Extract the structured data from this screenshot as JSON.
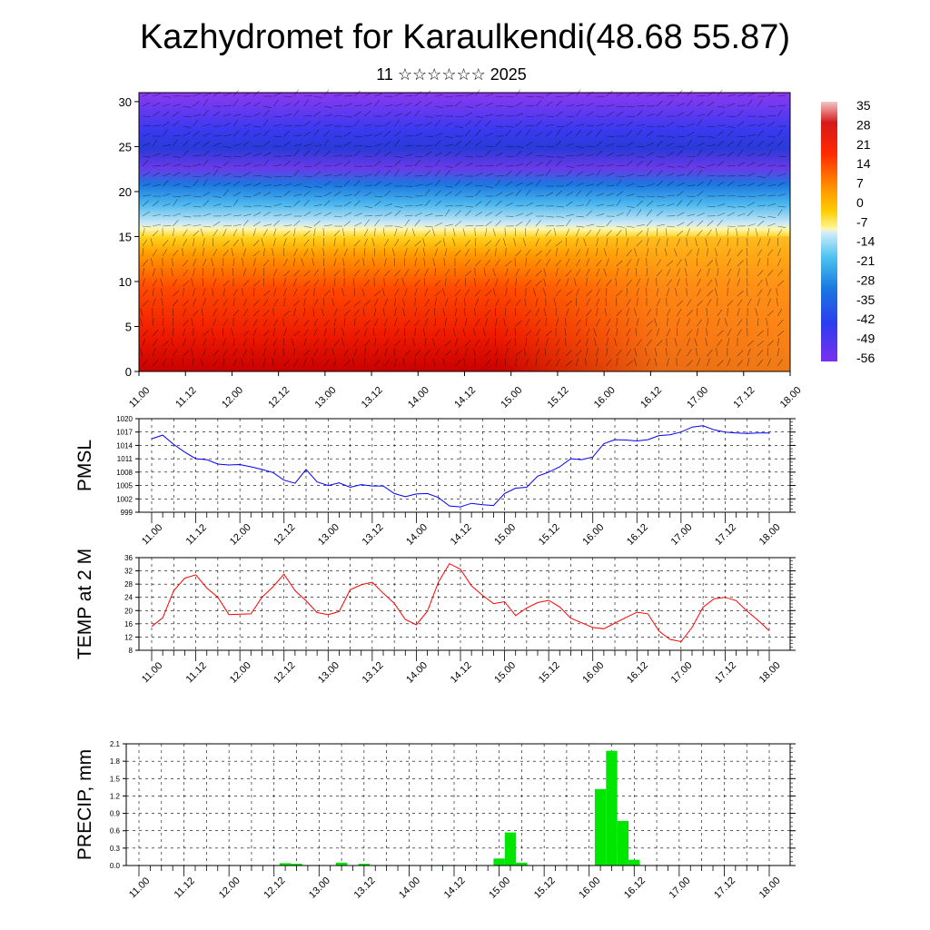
{
  "title": "Kazhydromet for Karaulkendi(48.68 55.87)",
  "subtitle": "11 ☆☆☆☆☆☆ 2025",
  "time_labels": [
    "11.00",
    "11.12",
    "12.00",
    "12.12",
    "13.00",
    "13.12",
    "14.00",
    "14.12",
    "15.00",
    "15.12",
    "16.00",
    "16.12",
    "17.00",
    "17.12",
    "18.00"
  ],
  "colors": {
    "pmsl_line": "#0000ff",
    "temp_line": "#ff0000",
    "precip_bar": "#00e600",
    "grid": "#000000"
  },
  "chart_data": [
    {
      "type": "heatmap",
      "name": "cross-section",
      "yticks": [
        0,
        5,
        10,
        15,
        20,
        25,
        30
      ],
      "ylim": [
        0,
        31
      ],
      "colorbar_labels": [
        "35",
        "28",
        "21",
        "14",
        "7",
        "0",
        "-7",
        "-14",
        "-21",
        "-28",
        "-35",
        "-42",
        "-49",
        "-56"
      ],
      "colorbar_range": [
        -60,
        38
      ]
    },
    {
      "type": "line",
      "ylabel": "PMSL",
      "ylim": [
        999,
        1020
      ],
      "yticks": [
        999,
        1002,
        1005,
        1008,
        1011,
        1014,
        1017,
        1020
      ],
      "values": [
        1015.5,
        1016.3,
        1014.2,
        1012.5,
        1011.0,
        1010.8,
        1009.8,
        1009.6,
        1009.7,
        1009.2,
        1008.6,
        1007.9,
        1006.2,
        1005.5,
        1008.6,
        1005.8,
        1005.0,
        1005.6,
        1004.6,
        1005.2,
        1004.9,
        1004.9,
        1003.2,
        1002.5,
        1003.1,
        1003.2,
        1002.3,
        1000.4,
        1000.2,
        1001.0,
        1000.7,
        1000.5,
        1003.2,
        1004.4,
        1004.6,
        1007.1,
        1008.0,
        1009.2,
        1011.0,
        1010.8,
        1011.4,
        1014.4,
        1015.3,
        1015.2,
        1015.0,
        1015.3,
        1016.2,
        1016.4,
        1017.0,
        1018.1,
        1018.4,
        1017.5,
        1017.0,
        1016.8,
        1016.7,
        1016.8,
        1016.8
      ]
    },
    {
      "type": "line",
      "ylabel": "TEMP at 2 M",
      "ylim": [
        8,
        36
      ],
      "yticks": [
        8,
        12,
        16,
        20,
        24,
        28,
        32,
        36
      ],
      "values": [
        15.2,
        17.8,
        26.0,
        29.8,
        30.8,
        26.8,
        24.0,
        18.8,
        18.9,
        19.0,
        24.0,
        27.2,
        31.0,
        26.0,
        23.0,
        19.4,
        18.8,
        19.7,
        26.3,
        27.8,
        28.6,
        25.2,
        22.2,
        17.3,
        15.7,
        19.8,
        28.6,
        34.2,
        32.5,
        27.5,
        24.6,
        22.1,
        22.7,
        18.5,
        20.8,
        22.4,
        23.1,
        21.1,
        17.7,
        16.3,
        14.9,
        14.5,
        16.2,
        17.9,
        19.5,
        19.0,
        13.8,
        11.3,
        10.6,
        14.9,
        21.0,
        23.6,
        24.0,
        23.0,
        19.8,
        17.0,
        13.9
      ]
    },
    {
      "type": "bar",
      "ylabel": "PRECIP, mm",
      "ylim": [
        0,
        2.1
      ],
      "yticks": [
        "0.0",
        "0.3",
        "0.6",
        "0.9",
        "1.2",
        "1.5",
        "1.8",
        "2.1"
      ],
      "values": [
        0,
        0,
        0,
        0,
        0,
        0,
        0,
        0,
        0,
        0,
        0,
        0,
        0,
        0.04,
        0.03,
        0,
        0,
        0,
        0.05,
        0,
        0.03,
        0,
        0,
        0,
        0,
        0,
        0,
        0.01,
        0,
        0,
        0,
        0,
        0.12,
        0.57,
        0.05,
        0,
        0,
        0,
        0,
        0,
        0,
        1.32,
        1.98,
        0.77,
        0.1,
        0,
        0,
        0,
        0,
        0,
        0,
        0,
        0,
        0,
        0,
        0,
        0
      ]
    }
  ]
}
